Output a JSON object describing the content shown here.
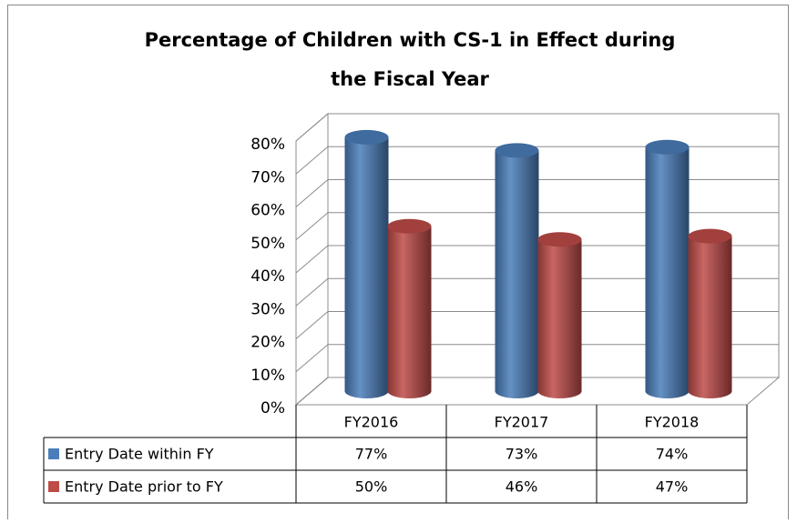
{
  "chart_data": {
    "type": "bar",
    "title": "Percentage of Children with CS-1 in Effect during the Fiscal Year",
    "categories": [
      "FY2016",
      "FY2017",
      "FY2018"
    ],
    "series": [
      {
        "name": "Entry Date within FY",
        "color": "#4a7ebb",
        "values": [
          77,
          73,
          74
        ],
        "value_labels": [
          "77%",
          "73%",
          "74%"
        ]
      },
      {
        "name": "Entry Date prior to FY",
        "color": "#be4b48",
        "values": [
          50,
          46,
          47
        ],
        "value_labels": [
          "50%",
          "46%",
          "47%"
        ]
      }
    ],
    "ylim": [
      0,
      80
    ],
    "yticks": [
      {
        "value": 0,
        "label": "0%"
      },
      {
        "value": 10,
        "label": "10%"
      },
      {
        "value": 20,
        "label": "20%"
      },
      {
        "value": 30,
        "label": "30%"
      },
      {
        "value": 40,
        "label": "40%"
      },
      {
        "value": 50,
        "label": "50%"
      },
      {
        "value": 60,
        "label": "60%"
      },
      {
        "value": 70,
        "label": "70%"
      },
      {
        "value": 80,
        "label": "80%"
      }
    ],
    "grid": true
  }
}
